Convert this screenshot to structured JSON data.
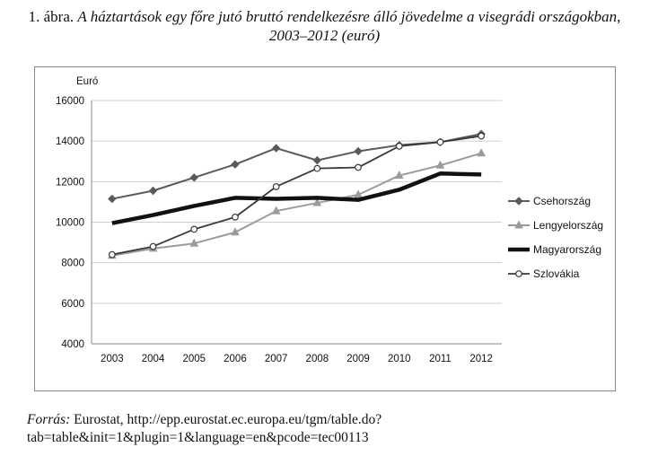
{
  "caption": {
    "number": "1. ábra.",
    "title": "A háztartások egy főre jutó bruttó rendelkezésre álló jövedelme a visegrádi országokban, 2003–2012 (euró)"
  },
  "source": {
    "label": "Forrás:",
    "text": "Eurostat, http://epp.eurostat.ec.europa.eu/tgm/table.do?tab=table&init=1&plugin=1&language=en&pcode=tec00113"
  },
  "chart_data": {
    "type": "line",
    "ylabel": "Euró",
    "ylim": [
      4000,
      16000
    ],
    "yticks": [
      4000,
      6000,
      8000,
      10000,
      12000,
      14000,
      16000
    ],
    "categories": [
      "2003",
      "2004",
      "2005",
      "2006",
      "2007",
      "2008",
      "2009",
      "2010",
      "2011",
      "2012"
    ],
    "grid": "horizontal",
    "legend_position": "right",
    "series": [
      {
        "name": "Csehország",
        "marker": "diamond",
        "color": "#5a5a5a",
        "width": 2,
        "values": [
          11150,
          11550,
          12200,
          12850,
          13650,
          13050,
          13500,
          13800,
          13950,
          14350
        ]
      },
      {
        "name": "Lengyelország",
        "marker": "triangle",
        "color": "#9b9b9b",
        "width": 2,
        "values": [
          8350,
          8700,
          8950,
          9500,
          10550,
          10950,
          11350,
          12300,
          12800,
          13400
        ]
      },
      {
        "name": "Magyarország",
        "marker": "none",
        "color": "#111111",
        "width": 4.5,
        "values": [
          9950,
          10350,
          10800,
          11200,
          11150,
          11200,
          11100,
          11600,
          12400,
          12350
        ]
      },
      {
        "name": "Szlovákia",
        "marker": "circle",
        "color": "#3a3a3a",
        "width": 1.8,
        "values": [
          8400,
          8800,
          9650,
          10250,
          11750,
          12650,
          12700,
          13750,
          13950,
          14250
        ]
      }
    ]
  }
}
